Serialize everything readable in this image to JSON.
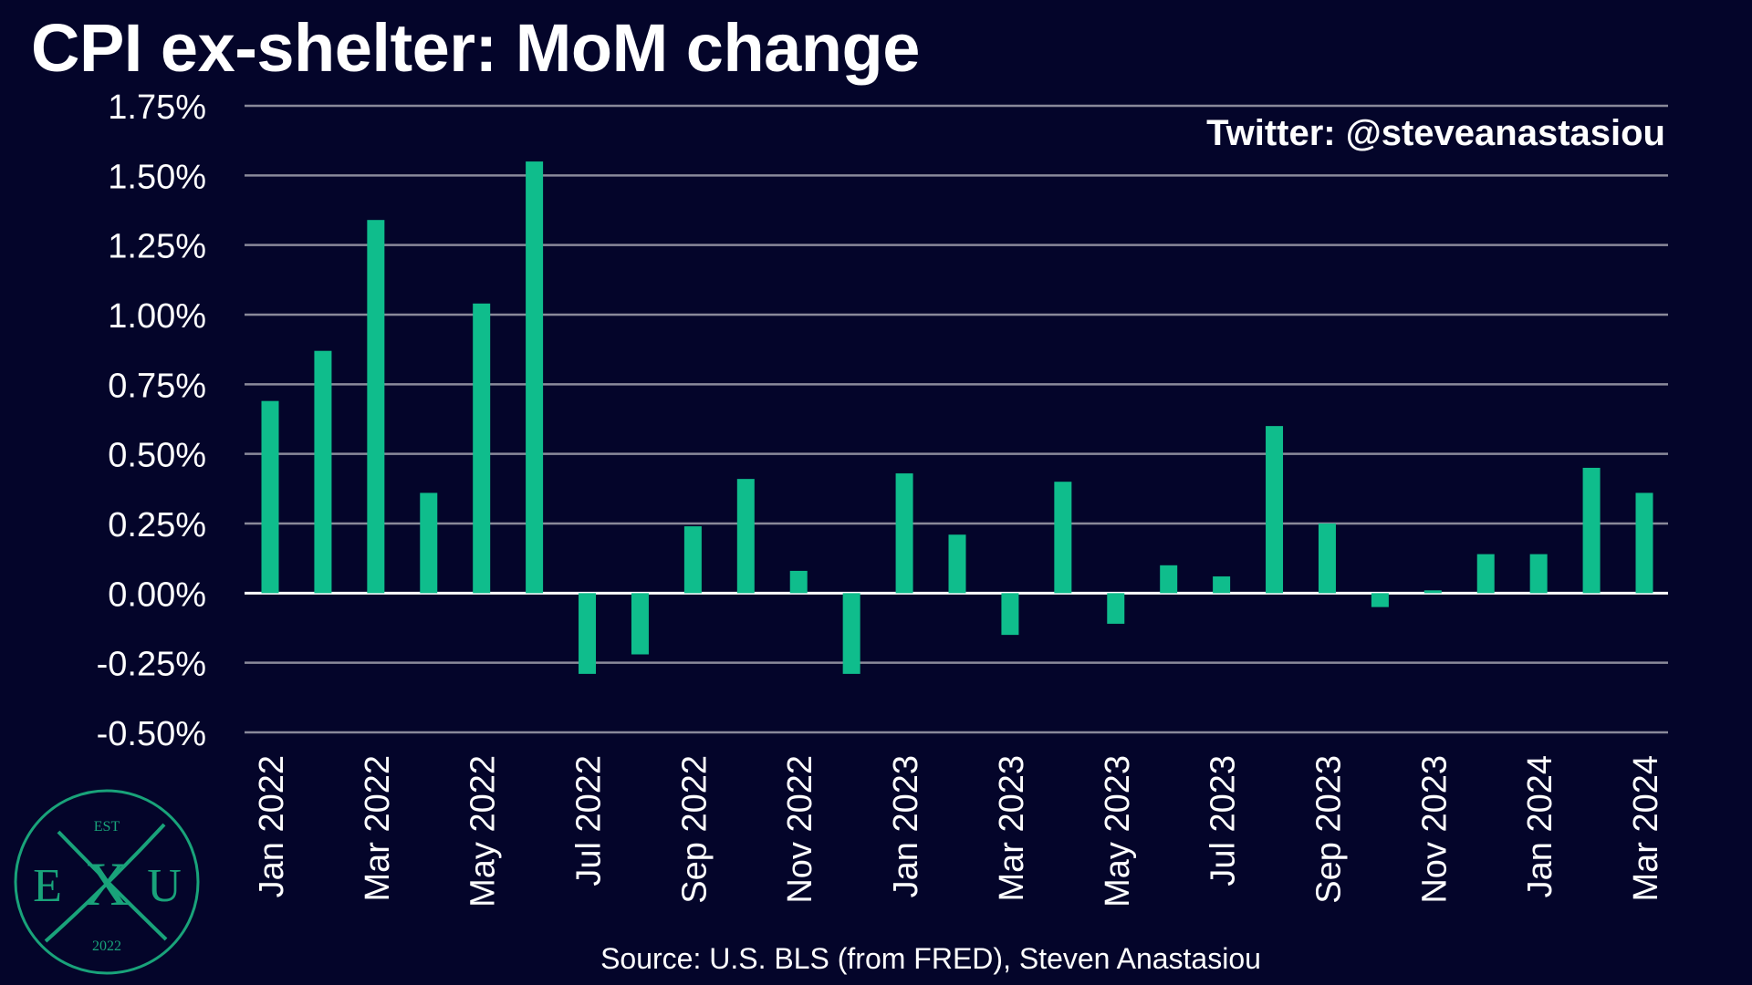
{
  "title": "CPI ex-shelter: MoM change",
  "watermark": "Twitter: @steveanastasiou",
  "source": "Source: U.S. BLS (from FRED), Steven Anastasiou",
  "logo": {
    "top_text": "EST",
    "letters": [
      "E",
      "X",
      "U"
    ],
    "bottom_text": "2022",
    "color": "#19a37a"
  },
  "colors": {
    "background": "#04052a",
    "bar": "#0fbd8c",
    "grid": "#8a8a9a",
    "text": "#ffffff"
  },
  "chart_data": {
    "type": "bar",
    "title": "CPI ex-shelter: MoM change",
    "categories": [
      "Jan 2022",
      "Feb 2022",
      "Mar 2022",
      "Apr 2022",
      "May 2022",
      "Jun 2022",
      "Jul 2022",
      "Aug 2022",
      "Sep 2022",
      "Oct 2022",
      "Nov 2022",
      "Dec 2022",
      "Jan 2023",
      "Feb 2023",
      "Mar 2023",
      "Apr 2023",
      "May 2023",
      "Jun 2023",
      "Jul 2023",
      "Aug 2023",
      "Sep 2023",
      "Oct 2023",
      "Nov 2023",
      "Dec 2023",
      "Jan 2024",
      "Feb 2024",
      "Mar 2024"
    ],
    "x_tick_labels": [
      "Jan 2022",
      "Mar 2022",
      "May 2022",
      "Jul 2022",
      "Sep 2022",
      "Nov 2022",
      "Jan 2023",
      "Mar 2023",
      "May 2023",
      "Jul 2023",
      "Sep 2023",
      "Nov 2023",
      "Jan 2024",
      "Mar 2024"
    ],
    "values": [
      0.69,
      0.87,
      1.34,
      0.36,
      1.04,
      1.55,
      -0.29,
      -0.22,
      0.24,
      0.41,
      0.08,
      -0.29,
      0.43,
      0.21,
      -0.15,
      0.4,
      -0.11,
      0.1,
      0.06,
      0.6,
      0.25,
      -0.05,
      0.01,
      0.14,
      0.14,
      0.45,
      0.36
    ],
    "ylim": [
      -0.5,
      1.75
    ],
    "y_ticks": [
      -0.5,
      -0.25,
      0,
      0.25,
      0.5,
      0.75,
      1.0,
      1.25,
      1.5,
      1.75
    ],
    "y_tick_labels": [
      "-0.50%",
      "-0.25%",
      "0.00%",
      "0.25%",
      "0.50%",
      "0.75%",
      "1.00%",
      "1.25%",
      "1.50%",
      "1.75%"
    ],
    "xlabel": "",
    "ylabel": "",
    "grid": true,
    "legend": "none"
  }
}
